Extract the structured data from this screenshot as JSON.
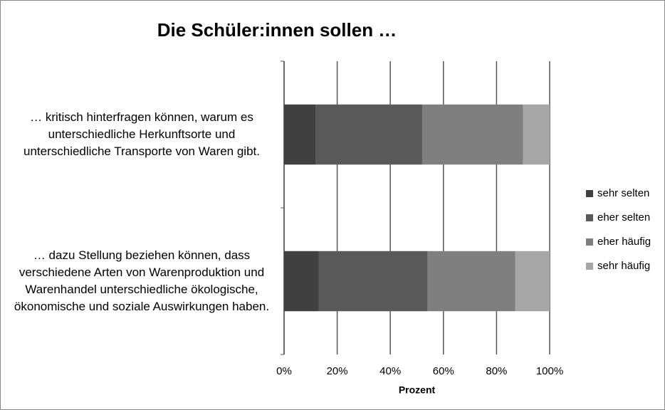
{
  "chart_data": {
    "type": "stacked_bar_horizontal",
    "title": "Die Schüler:innen sollen …",
    "categories": [
      "… kritisch hinterfragen können, warum es unterschiedliche Herkunftsorte und unterschiedliche Transporte von Waren gibt.",
      "… dazu Stellung beziehen können, dass verschiedene Arten  von Warenproduktion und Warenhandel unterschiedliche ökologische, ökonomische und soziale Auswirkungen haben."
    ],
    "series": [
      {
        "name": "sehr selten",
        "color": "#404040",
        "values": [
          12,
          13
        ]
      },
      {
        "name": "eher selten",
        "color": "#595959",
        "values": [
          40,
          41
        ]
      },
      {
        "name": "eher häufig",
        "color": "#7f7f7f",
        "values": [
          38,
          33
        ]
      },
      {
        "name": "sehr häufig",
        "color": "#a6a6a6",
        "values": [
          10,
          13
        ]
      }
    ],
    "xlabel": "Prozent",
    "xlim": [
      0,
      100
    ],
    "xticks": [
      {
        "value": 0,
        "label": "0%"
      },
      {
        "value": 20,
        "label": "20%"
      },
      {
        "value": 40,
        "label": "40%"
      },
      {
        "value": 60,
        "label": "60%"
      },
      {
        "value": 80,
        "label": "80%"
      },
      {
        "value": 100,
        "label": "100%"
      }
    ],
    "grid": true,
    "legend": "right"
  }
}
